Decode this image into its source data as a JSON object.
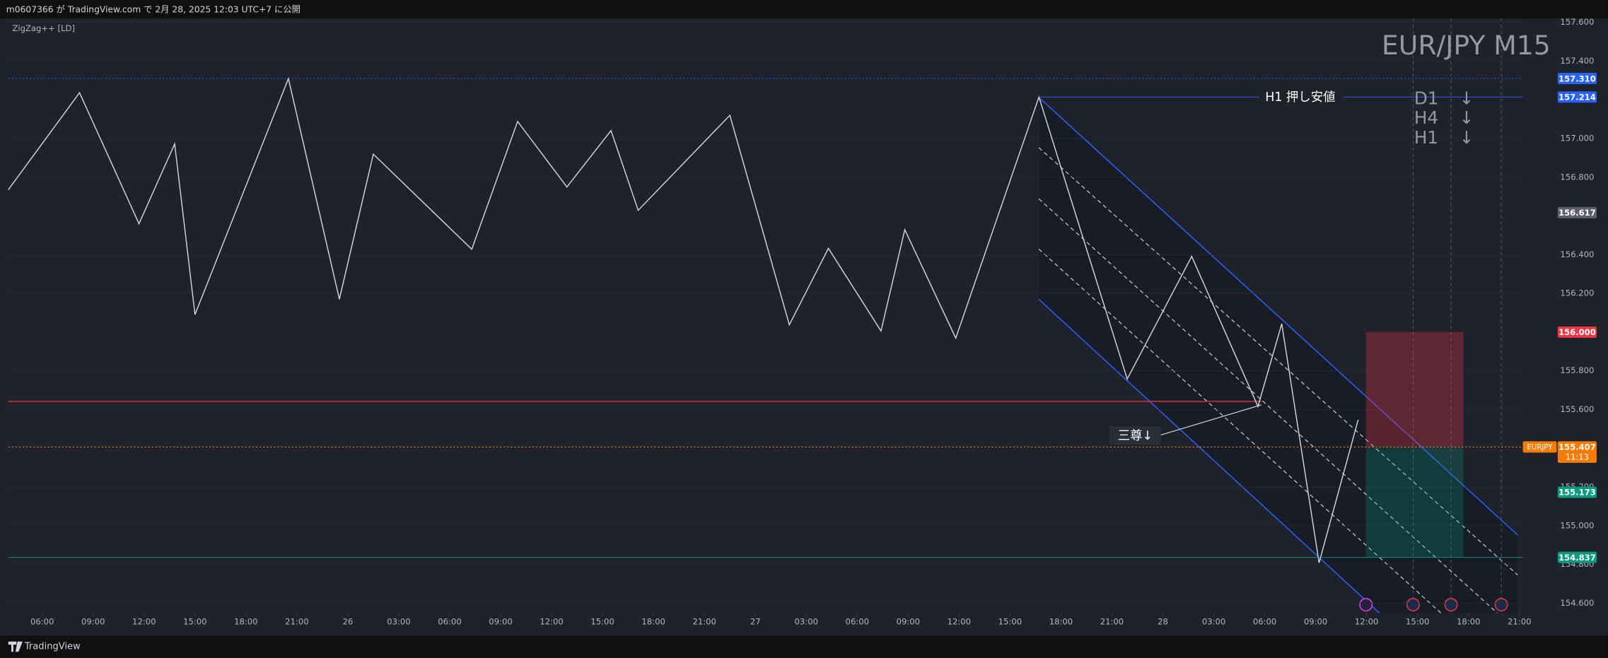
{
  "header": {
    "publisher_text": "m0607366 が TradingView.com で 2月 28, 2025 12:03 UTC+7 に公開"
  },
  "chart_data": {
    "type": "line",
    "title": "EUR/JPY M15",
    "indicator": "ZigZag++ [LD]",
    "color": "#d1d4dc",
    "x": [
      4.0,
      8.2,
      11.7,
      13.8,
      15.0,
      20.5,
      23.5,
      25.5,
      31.3,
      34.0,
      36.9,
      39.5,
      41.1,
      46.5,
      50.0,
      52.3,
      55.4,
      56.8,
      59.8,
      64.7,
      69.9,
      73.7,
      77.6,
      79.0,
      81.2,
      83.5
    ],
    "values": [
      156.735,
      157.236,
      156.56,
      156.972,
      156.091,
      157.31,
      156.17,
      156.919,
      156.428,
      157.088,
      156.75,
      157.041,
      156.629,
      157.12,
      156.038,
      156.433,
      156.006,
      156.529,
      155.969,
      157.214,
      155.758,
      156.391,
      155.616,
      156.043,
      154.809,
      155.547
    ],
    "xlim": [
      4,
      93.2
    ],
    "ylim": [
      154.55,
      157.62
    ],
    "xticks": [
      {
        "value": 6,
        "label": "06:00"
      },
      {
        "value": 9,
        "label": "09:00"
      },
      {
        "value": 12,
        "label": "12:00"
      },
      {
        "value": 15,
        "label": "15:00"
      },
      {
        "value": 18,
        "label": "18:00"
      },
      {
        "value": 21,
        "label": "21:00"
      },
      {
        "value": 24,
        "label": "26"
      },
      {
        "value": 27,
        "label": "03:00"
      },
      {
        "value": 30,
        "label": "06:00"
      },
      {
        "value": 33,
        "label": "09:00"
      },
      {
        "value": 36,
        "label": "12:00"
      },
      {
        "value": 39,
        "label": "15:00"
      },
      {
        "value": 42,
        "label": "18:00"
      },
      {
        "value": 45,
        "label": "21:00"
      },
      {
        "value": 48,
        "label": "27"
      },
      {
        "value": 51,
        "label": "03:00"
      },
      {
        "value": 54,
        "label": "06:00"
      },
      {
        "value": 57,
        "label": "09:00"
      },
      {
        "value": 60,
        "label": "12:00"
      },
      {
        "value": 63,
        "label": "15:00"
      },
      {
        "value": 66,
        "label": "18:00"
      },
      {
        "value": 69,
        "label": "21:00"
      },
      {
        "value": 72,
        "label": "28"
      },
      {
        "value": 75,
        "label": "03:00"
      },
      {
        "value": 78,
        "label": "06:00"
      },
      {
        "value": 81,
        "label": "09:00"
      },
      {
        "value": 84,
        "label": "12:00"
      },
      {
        "value": 87,
        "label": "15:00"
      },
      {
        "value": 90,
        "label": "18:00"
      },
      {
        "value": 93,
        "label": "21:00"
      }
    ],
    "yticks": [
      {
        "value": 157.6,
        "label": "157.600"
      },
      {
        "value": 157.4,
        "label": "157.400"
      },
      {
        "value": 157.0,
        "label": "157.000"
      },
      {
        "value": 156.8,
        "label": "156.800"
      },
      {
        "value": 156.4,
        "label": "156.400"
      },
      {
        "value": 156.2,
        "label": "156.200"
      },
      {
        "value": 155.8,
        "label": "155.800"
      },
      {
        "value": 155.6,
        "label": "155.600"
      },
      {
        "value": 155.2,
        "label": "155.200"
      },
      {
        "value": 155.0,
        "label": "155.000"
      },
      {
        "value": 154.8,
        "label": "154.800"
      },
      {
        "value": 154.6,
        "label": "154.600"
      }
    ],
    "price_levels": [
      {
        "value": 157.31,
        "label": "157.310",
        "color": "#2962ff",
        "line": "dotted"
      },
      {
        "value": 157.214,
        "label": "157.214",
        "color": "#2962ff",
        "line": "solid",
        "line_start": 64.7
      },
      {
        "value": 156.617,
        "label": "156.617",
        "color": "#5d606b"
      },
      {
        "value": 156.0,
        "label": "156.000",
        "color": "#f23645"
      },
      {
        "value": 155.173,
        "label": "155.173",
        "color": "#089981"
      },
      {
        "value": 154.837,
        "label": "154.837",
        "color": "#089981",
        "line": "solid"
      }
    ],
    "resistance_line": {
      "value": 155.642,
      "color": "#f23645"
    },
    "current_price": {
      "symbol": "EURJPY",
      "value": 155.407,
      "label": "155.407",
      "countdown": "11:13",
      "color": "#f57c00"
    },
    "annotations": {
      "support": "H1 押し安値",
      "timeframes": [
        "D1",
        "H4",
        "H1"
      ],
      "arrow": "↓",
      "pattern": "三尊↓"
    }
  },
  "footer": {
    "brand": "TradingView"
  }
}
